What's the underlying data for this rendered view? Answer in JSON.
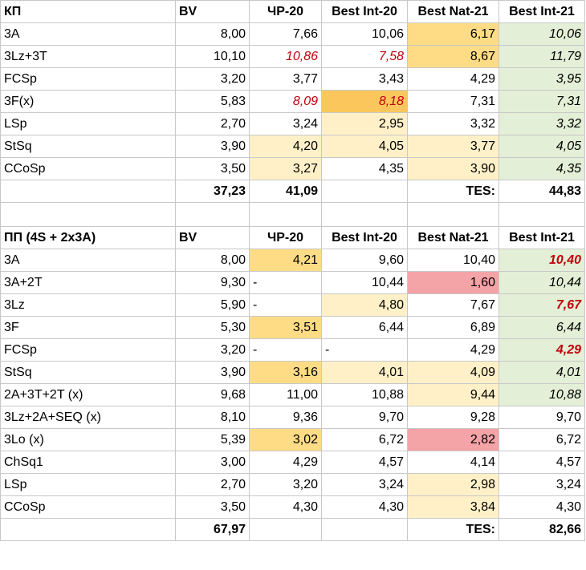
{
  "headers": [
    "КП",
    "BV",
    "ЧР-20",
    "Best Int-20",
    "Best Nat-21",
    "Best Int-21"
  ],
  "headers2": [
    "ПП (4S + 2x3A)",
    "BV",
    "ЧР-20",
    "Best Int-20",
    "Best Nat-21",
    "Best Int-21"
  ],
  "sp": [
    [
      "3A",
      "8,00",
      "7,66",
      "10,06",
      "6,17",
      "10,06"
    ],
    [
      "3Lz+3T",
      "10,10",
      "10,86",
      "7,58",
      "8,67",
      "11,79"
    ],
    [
      "FCSp",
      "3,20",
      "3,77",
      "3,43",
      "4,29",
      "3,95"
    ],
    [
      "3F(x)",
      "5,83",
      "8,09",
      "8,18",
      "7,31",
      "7,31"
    ],
    [
      "LSp",
      "2,70",
      "3,24",
      "2,95",
      "3,32",
      "3,32"
    ],
    [
      "StSq",
      "3,90",
      "4,20",
      "4,05",
      "3,77",
      "4,05"
    ],
    [
      "CCoSp",
      "3,50",
      "3,27",
      "4,35",
      "3,90",
      "4,35"
    ]
  ],
  "sp_total": [
    "",
    "37,23",
    "41,09",
    "",
    "TES:",
    "44,83"
  ],
  "fs": [
    [
      "3A",
      "8,00",
      "4,21",
      "9,60",
      "10,40",
      "10,40"
    ],
    [
      "3A+2T",
      "9,30",
      "-",
      "10,44",
      "1,60",
      "10,44"
    ],
    [
      "3Lz",
      "5,90",
      "-",
      "4,80",
      "7,67",
      "7,67"
    ],
    [
      "3F",
      "5,30",
      "3,51",
      "6,44",
      "6,89",
      "6,44"
    ],
    [
      "FCSp",
      "3,20",
      "-",
      "-",
      "4,29",
      "4,29"
    ],
    [
      "StSq",
      "3,90",
      "3,16",
      "4,01",
      "4,09",
      "4,01"
    ],
    [
      "2A+3T+2T (x)",
      "9,68",
      "11,00",
      "10,88",
      "9,44",
      "10,88"
    ],
    [
      "3Lz+2A+SEQ (x)",
      "8,10",
      "9,36",
      "9,70",
      "9,28",
      "9,70"
    ],
    [
      "3Lo (x)",
      "5,39",
      "3,02",
      "6,72",
      "2,82",
      "6,72"
    ],
    [
      "ChSq1",
      "3,00",
      "4,29",
      "4,57",
      "4,14",
      "4,57"
    ],
    [
      "LSp",
      "2,70",
      "3,20",
      "3,24",
      "2,98",
      "3,24"
    ],
    [
      "CCoSp",
      "3,50",
      "4,30",
      "4,30",
      "3,84",
      "4,30"
    ]
  ],
  "fs_total": [
    "",
    "67,97",
    "",
    "",
    "TES:",
    "82,66"
  ],
  "colors": {
    "yellow": "#fddc85",
    "light_yellow": "#fff0c8",
    "green": "#e3efd6",
    "red_fill": "#f4a3a7",
    "orange": "#fbc75c",
    "red_text": "#c0000c"
  }
}
